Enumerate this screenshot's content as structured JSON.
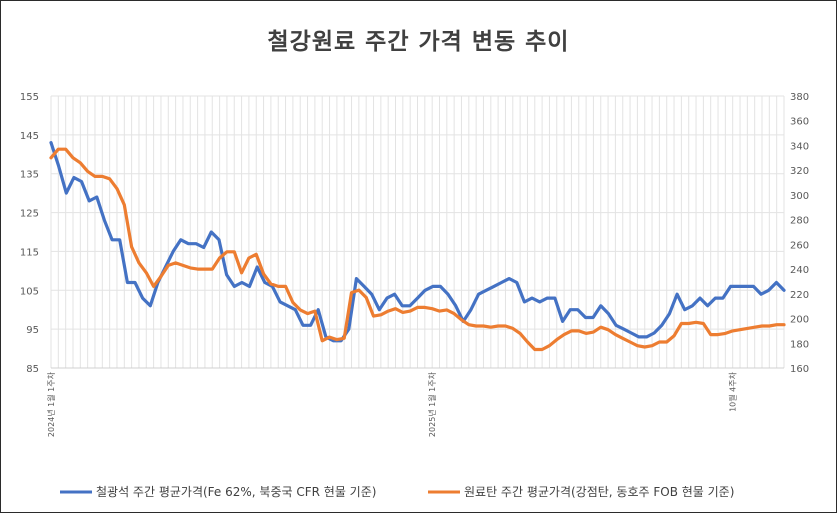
{
  "chart_data": {
    "type": "line",
    "title": "철강원료 주간 가격 변동 추이",
    "grid": true,
    "legend_position": "bottom",
    "y_left": {
      "min": 85,
      "max": 155,
      "ticks": [
        85,
        95,
        105,
        115,
        125,
        135,
        145,
        155
      ]
    },
    "y_right": {
      "min": 160,
      "max": 380,
      "ticks": [
        160,
        180,
        200,
        220,
        240,
        260,
        280,
        300,
        320,
        340,
        360,
        380
      ]
    },
    "x_labels": [
      {
        "label": "2024년 1월 1주차",
        "index": 0
      },
      {
        "label": "2025년 1월 1주차",
        "index": 52
      },
      {
        "label": "10월 4주차",
        "index": 93
      }
    ],
    "series": [
      {
        "name": "철광석 주간 평균가격(Fe 62%, 북중국 CFR 현물 기준)",
        "axis": "left",
        "color": "#4472C4",
        "values": [
          143,
          137,
          130,
          134,
          133,
          128,
          129,
          123,
          118,
          118,
          107,
          107,
          103,
          101,
          107,
          111,
          115,
          118,
          117,
          117,
          116,
          120,
          118,
          109,
          106,
          107,
          106,
          111,
          107,
          106,
          102,
          101,
          100,
          96,
          96,
          100,
          93,
          92,
          92,
          95,
          108,
          106,
          104,
          100,
          103,
          104,
          101,
          101,
          103,
          105,
          106,
          106,
          104,
          101,
          97,
          100,
          104,
          105,
          106,
          107,
          108,
          107,
          102,
          103,
          102,
          103,
          103,
          97,
          100,
          100,
          98,
          98,
          101,
          99,
          96,
          95,
          94,
          93,
          93,
          94,
          96,
          99,
          104,
          100,
          101,
          103,
          101,
          103,
          103,
          106,
          106,
          106,
          106,
          104,
          105,
          107,
          105
        ]
      },
      {
        "name": "원료탄 주간 평균가격(강점탄, 동호주 FOB 현물 기준)",
        "axis": "right",
        "color": "#ED7D31",
        "values": [
          330,
          337,
          337,
          330,
          326,
          319,
          315,
          315,
          313,
          305,
          292,
          258,
          245,
          237,
          226,
          234,
          243,
          245,
          243,
          241,
          240,
          240,
          240,
          249,
          254,
          254,
          237,
          249,
          252,
          236,
          228,
          226,
          226,
          213,
          207,
          204,
          206,
          182,
          185,
          183,
          184,
          221,
          223,
          217,
          202,
          203,
          206,
          208,
          205,
          206,
          209,
          209,
          208,
          206,
          207,
          204,
          199,
          195,
          194,
          194,
          193,
          194,
          194,
          192,
          188,
          181,
          175,
          175,
          178,
          183,
          187,
          190,
          190,
          188,
          189,
          193,
          191,
          187,
          184,
          181,
          178,
          177,
          178,
          181,
          181,
          186,
          196,
          196,
          197,
          196,
          187,
          187,
          188,
          190,
          191,
          192,
          193,
          194,
          194,
          195,
          195
        ]
      }
    ]
  }
}
